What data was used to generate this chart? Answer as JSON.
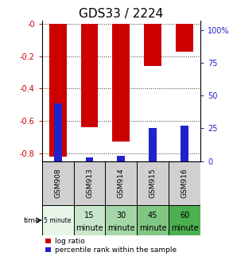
{
  "title": "GDS33 / 2224",
  "samples": [
    "GSM908",
    "GSM913",
    "GSM914",
    "GSM915",
    "GSM916"
  ],
  "time_labels_line1": [
    "5 minute",
    "15",
    "30",
    "45",
    "60"
  ],
  "time_labels_line2": [
    "",
    "minute",
    "minute",
    "minute",
    "minute"
  ],
  "time_colors": [
    "#e8f5e9",
    "#c8e6c9",
    "#a5d6a7",
    "#81c784",
    "#4caf50"
  ],
  "log_ratio": [
    -0.82,
    -0.64,
    -0.73,
    -0.26,
    -0.17
  ],
  "percentile_rank": [
    44,
    3,
    4,
    25,
    27
  ],
  "bar_width": 0.55,
  "blue_bar_width": 0.25,
  "ylim_left": [
    -0.85,
    0.02
  ],
  "ylim_right": [
    0,
    107
  ],
  "yticks_left": [
    0.0,
    -0.2,
    -0.4,
    -0.6,
    -0.8
  ],
  "ytick_labels_left": [
    "-0",
    "-0.2",
    "-0.4",
    "-0.6",
    "-0.8"
  ],
  "yticks_right": [
    0,
    25,
    50,
    75,
    100
  ],
  "ytick_labels_right": [
    "0",
    "25",
    "50",
    "75",
    "100%"
  ],
  "red_color": "#cc0000",
  "blue_color": "#2222cc",
  "sample_bg": "#d0d0d0",
  "legend_red": "log ratio",
  "legend_blue": "percentile rank within the sample",
  "title_fontsize": 11,
  "tick_fontsize": 7,
  "sample_fontsize": 6.5,
  "time_fontsize": 7,
  "legend_fontsize": 6.5
}
